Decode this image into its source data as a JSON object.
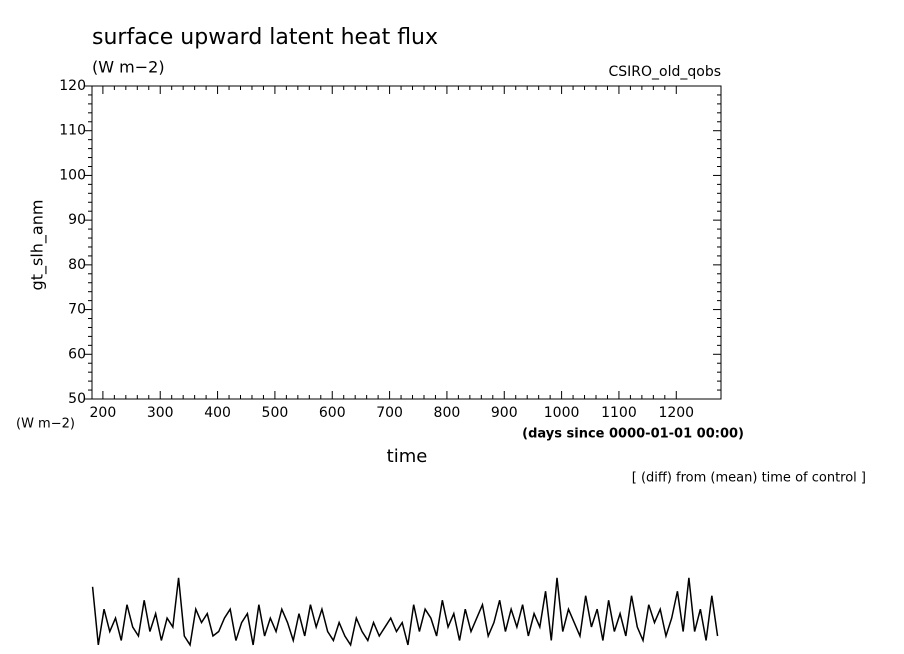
{
  "chart_data": {
    "type": "line",
    "title": "surface upward latent heat flux",
    "subtitle": "(W m−2)",
    "source": "CSIRO_old_qobs",
    "y_label": "gt_slh_anm",
    "y_units": "(W m−2)",
    "x_label": "time",
    "x_units": "(days since 0000-01-01 00:00)",
    "note": "[ (diff) from (mean) time of control ]",
    "xlim": [
      181,
      1278
    ],
    "ylim": [
      50,
      120
    ],
    "xticks": [
      200,
      300,
      400,
      500,
      600,
      700,
      800,
      900,
      1000,
      1100,
      1200
    ],
    "yticks": [
      50,
      60,
      70,
      80,
      90,
      100,
      110,
      120
    ],
    "color": "#000000",
    "x": [
      182,
      192,
      202,
      212,
      222,
      232,
      242,
      252,
      262,
      272,
      282,
      292,
      302,
      312,
      322,
      332,
      342,
      352,
      362,
      372,
      382,
      392,
      402,
      412,
      422,
      432,
      442,
      452,
      462,
      472,
      482,
      492,
      502,
      512,
      522,
      532,
      542,
      552,
      562,
      572,
      582,
      592,
      602,
      612,
      622,
      632,
      642,
      652,
      662,
      672,
      682,
      692,
      702,
      712,
      722,
      732,
      742,
      752,
      762,
      772,
      782,
      792,
      802,
      812,
      822,
      832,
      842,
      852,
      862,
      872,
      882,
      892,
      902,
      912,
      922,
      932,
      942,
      952,
      962,
      972,
      982,
      992,
      1002,
      1012,
      1022,
      1032,
      1042,
      1052,
      1062,
      1072,
      1082,
      1092,
      1102,
      1112,
      1122,
      1132,
      1142,
      1152,
      1162,
      1172,
      1182,
      1192,
      1202,
      1212,
      1222,
      1232,
      1242,
      1252,
      1262,
      1272
    ],
    "values": [
      8,
      -5,
      3,
      -2,
      1,
      -4,
      4,
      -1,
      -3,
      5,
      -2,
      2,
      -4,
      1,
      -1,
      10,
      -3,
      -5,
      3,
      0,
      2,
      -3,
      -2,
      1,
      3,
      -4,
      0,
      2,
      -5,
      4,
      -3,
      1,
      -2,
      3,
      0,
      -4,
      2,
      -3,
      4,
      -1,
      3,
      -2,
      -4,
      0,
      -3,
      -5,
      1,
      -2,
      -4,
      0,
      -3,
      -1,
      1,
      -2,
      0,
      -5,
      4,
      -2,
      3,
      1,
      -3,
      5,
      -1,
      2,
      -4,
      3,
      -2,
      1,
      4,
      -3,
      0,
      5,
      -2,
      3,
      -1,
      4,
      -3,
      2,
      -1,
      7,
      -4,
      10,
      -2,
      3,
      0,
      -3,
      6,
      -1,
      3,
      -4,
      5,
      -2,
      2,
      -3,
      6,
      -1,
      -4,
      4,
      0,
      3,
      -3,
      1,
      7,
      -2,
      10,
      -2,
      3,
      -4,
      6,
      -3
    ]
  }
}
